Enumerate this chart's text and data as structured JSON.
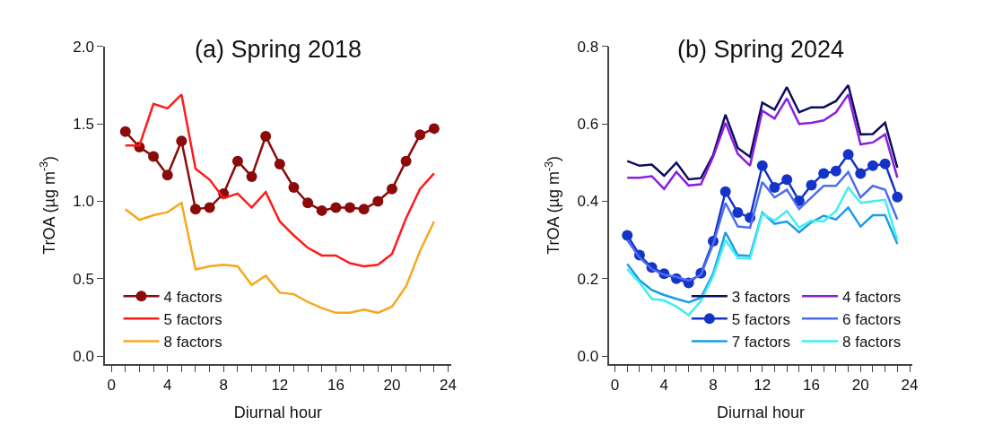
{
  "chart_data": [
    {
      "type": "line",
      "title": "(a) Spring 2018",
      "xlabel": "Diurnal hour",
      "ylabel": "TrOA (µg m$^{-3}$)",
      "x": [
        1,
        2,
        3,
        4,
        5,
        6,
        7,
        8,
        9,
        10,
        11,
        12,
        13,
        14,
        15,
        16,
        17,
        18,
        19,
        20,
        21,
        22,
        23
      ],
      "xlim": [
        -0.45,
        24.2
      ],
      "ylim": [
        -0.05,
        2.0
      ],
      "xticks": [
        0,
        {
          "value": 1,
          "label": null
        },
        {
          "value": 2,
          "label": null
        },
        {
          "value": 3,
          "label": null
        },
        4,
        {
          "value": 5,
          "label": null
        },
        {
          "value": 6,
          "label": null
        },
        {
          "value": 7,
          "label": null
        },
        8,
        {
          "value": 9,
          "label": null
        },
        {
          "value": 10,
          "label": null
        },
        {
          "value": 11,
          "label": null
        },
        12,
        {
          "value": 13,
          "label": null
        },
        {
          "value": 14,
          "label": null
        },
        {
          "value": 15,
          "label": null
        },
        16,
        {
          "value": 17,
          "label": null
        },
        {
          "value": 18,
          "label": null
        },
        {
          "value": 19,
          "label": null
        },
        20,
        {
          "value": 21,
          "label": null
        },
        {
          "value": 22,
          "label": null
        },
        {
          "value": 23,
          "label": null
        },
        24
      ],
      "yticks": [
        {
          "value": 0,
          "label": "0.0"
        },
        {
          "value": 0.5,
          "label": "0.5"
        },
        {
          "value": 1,
          "label": "1.0"
        },
        {
          "value": 1.5,
          "label": "1.5"
        },
        {
          "value": 2,
          "label": "2.0"
        }
      ],
      "legend": "bottom left",
      "series": [
        {
          "name": "4 factors",
          "color": "#8b0a0a",
          "marker": "circle",
          "values": [
            1.45,
            1.35,
            1.29,
            1.17,
            1.39,
            0.95,
            0.96,
            1.05,
            1.26,
            1.16,
            1.42,
            1.24,
            1.09,
            0.99,
            0.94,
            0.96,
            0.96,
            0.95,
            1.0,
            1.08,
            1.26,
            1.43,
            1.47
          ]
        },
        {
          "name": "5 factors",
          "color": "#ff1a1a",
          "marker": "none",
          "values": [
            1.36,
            1.36,
            1.63,
            1.6,
            1.69,
            1.21,
            1.14,
            1.02,
            1.05,
            0.96,
            1.06,
            0.87,
            0.78,
            0.7,
            0.65,
            0.65,
            0.6,
            0.58,
            0.59,
            0.66,
            0.89,
            1.08,
            1.18
          ]
        },
        {
          "name": "8 factors",
          "color": "#f5a81c",
          "marker": "none",
          "values": [
            0.95,
            0.88,
            0.91,
            0.93,
            0.99,
            0.56,
            0.58,
            0.59,
            0.58,
            0.46,
            0.52,
            0.41,
            0.4,
            0.35,
            0.31,
            0.28,
            0.28,
            0.3,
            0.28,
            0.32,
            0.45,
            0.68,
            0.87
          ]
        }
      ]
    },
    {
      "type": "line",
      "title": "(b) Spring 2024",
      "xlabel": "Diurnal hour",
      "ylabel": "TrOA (µg m$^{-3}$)",
      "x": [
        1,
        2,
        3,
        4,
        5,
        6,
        7,
        8,
        9,
        10,
        11,
        12,
        13,
        14,
        15,
        16,
        17,
        18,
        19,
        20,
        21,
        22,
        23
      ],
      "xlim": [
        -0.45,
        24.2
      ],
      "ylim": [
        -0.02,
        0.8
      ],
      "xticks": [
        0,
        {
          "value": 1,
          "label": null
        },
        {
          "value": 2,
          "label": null
        },
        {
          "value": 3,
          "label": null
        },
        4,
        {
          "value": 5,
          "label": null
        },
        {
          "value": 6,
          "label": null
        },
        {
          "value": 7,
          "label": null
        },
        8,
        {
          "value": 9,
          "label": null
        },
        {
          "value": 10,
          "label": null
        },
        {
          "value": 11,
          "label": null
        },
        12,
        {
          "value": 13,
          "label": null
        },
        {
          "value": 14,
          "label": null
        },
        {
          "value": 15,
          "label": null
        },
        16,
        {
          "value": 17,
          "label": null
        },
        {
          "value": 18,
          "label": null
        },
        {
          "value": 19,
          "label": null
        },
        20,
        {
          "value": 21,
          "label": null
        },
        {
          "value": 22,
          "label": null
        },
        {
          "value": 23,
          "label": null
        },
        24
      ],
      "yticks": [
        {
          "value": 0,
          "label": "0.0"
        },
        {
          "value": 0.2,
          "label": "0.2"
        },
        {
          "value": 0.4,
          "label": "0.4"
        },
        {
          "value": 0.6,
          "label": "0.6"
        },
        {
          "value": 0.8,
          "label": "0.8"
        }
      ],
      "legend": "bottom right",
      "series": [
        {
          "name": "3 factors",
          "color": "#0c0c5e",
          "marker": "none",
          "values": [
            0.504,
            0.492,
            0.495,
            0.466,
            0.5,
            0.457,
            0.46,
            0.52,
            0.624,
            0.538,
            0.515,
            0.655,
            0.637,
            0.695,
            0.63,
            0.643,
            0.643,
            0.659,
            0.7,
            0.573,
            0.574,
            0.603,
            0.487
          ]
        },
        {
          "name": "4 factors",
          "color": "#8a1fe0",
          "marker": "none",
          "values": [
            0.461,
            0.461,
            0.465,
            0.432,
            0.476,
            0.441,
            0.444,
            0.515,
            0.603,
            0.523,
            0.492,
            0.634,
            0.614,
            0.666,
            0.6,
            0.603,
            0.609,
            0.63,
            0.676,
            0.547,
            0.552,
            0.573,
            0.461
          ]
        },
        {
          "name": "5 factors",
          "color": "#1434c8",
          "marker": "circle",
          "values": [
            0.312,
            0.261,
            0.229,
            0.213,
            0.2,
            0.189,
            0.214,
            0.297,
            0.425,
            0.371,
            0.358,
            0.492,
            0.436,
            0.456,
            0.401,
            0.442,
            0.472,
            0.478,
            0.521,
            0.472,
            0.492,
            0.497,
            0.411
          ]
        },
        {
          "name": "6 factors",
          "color": "#4d6cf0",
          "marker": "none",
          "values": [
            0.3,
            0.255,
            0.225,
            0.21,
            0.205,
            0.195,
            0.21,
            0.29,
            0.396,
            0.335,
            0.332,
            0.45,
            0.41,
            0.43,
            0.38,
            0.41,
            0.44,
            0.44,
            0.476,
            0.41,
            0.44,
            0.43,
            0.353
          ]
        },
        {
          "name": "7 factors",
          "color": "#1a9ee8",
          "marker": "none",
          "values": [
            0.238,
            0.196,
            0.171,
            0.158,
            0.148,
            0.139,
            0.151,
            0.214,
            0.32,
            0.261,
            0.259,
            0.371,
            0.342,
            0.348,
            0.32,
            0.346,
            0.363,
            0.353,
            0.384,
            0.335,
            0.364,
            0.364,
            0.29
          ]
        },
        {
          "name": "8 factors",
          "color": "#40eef0",
          "marker": "none",
          "values": [
            0.225,
            0.19,
            0.148,
            0.144,
            0.128,
            0.106,
            0.142,
            0.207,
            0.3,
            0.254,
            0.252,
            0.368,
            0.35,
            0.375,
            0.332,
            0.35,
            0.348,
            0.375,
            0.436,
            0.396,
            0.4,
            0.404,
            0.3
          ]
        }
      ]
    }
  ]
}
